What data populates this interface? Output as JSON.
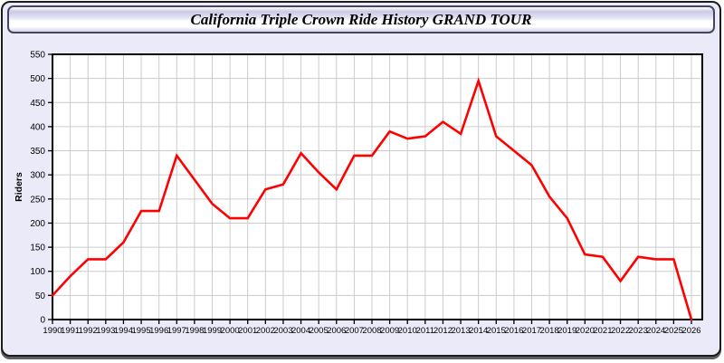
{
  "window": {
    "title": "California Triple Crown Ride History GRAND TOUR"
  },
  "colors": {
    "panel_bg": "#eaeaf8",
    "panel_border": "#1c1c1c",
    "titlebar_border": "#45455f",
    "plot_bg": "#ffffff",
    "grid": "#cccccc",
    "axis": "#000000",
    "line": "#ff0000",
    "tick_text": "#000000"
  },
  "chart_data": {
    "type": "line",
    "title": "California Triple Crown Ride History GRAND TOUR",
    "xlabel": "",
    "ylabel": "Riders",
    "ylim": [
      0,
      550
    ],
    "ytick_step": 50,
    "grid": true,
    "legend_position": "none",
    "x": [
      1990,
      1991,
      1992,
      1993,
      1994,
      1995,
      1996,
      1997,
      1998,
      1999,
      2000,
      2001,
      2002,
      2003,
      2004,
      2005,
      2006,
      2007,
      2008,
      2009,
      2010,
      2011,
      2012,
      2013,
      2014,
      2015,
      2016,
      2017,
      2018,
      2019,
      2020,
      2021,
      2022,
      2023,
      2024,
      2025,
      2026
    ],
    "series": [
      {
        "name": "Riders",
        "color": "#ff0000",
        "values": [
          50,
          90,
          125,
          125,
          160,
          225,
          225,
          340,
          290,
          240,
          210,
          210,
          270,
          280,
          345,
          305,
          270,
          340,
          340,
          390,
          375,
          380,
          410,
          385,
          495,
          380,
          350,
          320,
          255,
          210,
          135,
          130,
          80,
          130,
          125,
          125,
          0
        ]
      }
    ]
  }
}
